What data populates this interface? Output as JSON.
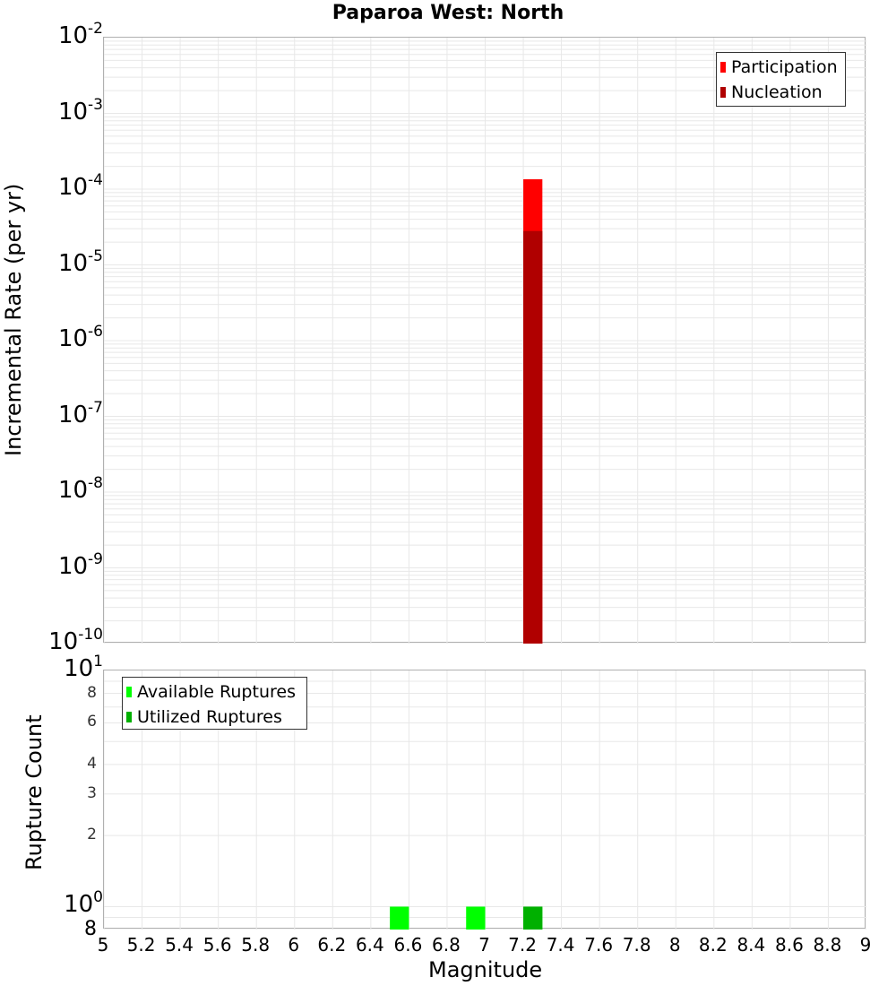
{
  "title": "Paparoa West: North",
  "colors": {
    "participation": "#ff0000",
    "nucleation": "#b00000",
    "available": "#00ff00",
    "utilized": "#00b000",
    "grid": "#e8e8e8",
    "axis": "#b0b0b0"
  },
  "top_plot": {
    "ylabel": "Incremental Rate (per yr)",
    "yticks": [
      {
        "base": "10",
        "exp": "-2"
      },
      {
        "base": "10",
        "exp": "-3"
      },
      {
        "base": "10",
        "exp": "-4"
      },
      {
        "base": "10",
        "exp": "-5"
      },
      {
        "base": "10",
        "exp": "-6"
      },
      {
        "base": "10",
        "exp": "-7"
      },
      {
        "base": "10",
        "exp": "-8"
      },
      {
        "base": "10",
        "exp": "-9"
      },
      {
        "base": "10",
        "exp": "-10"
      }
    ],
    "legend": [
      {
        "label": "Participation"
      },
      {
        "label": "Nucleation"
      }
    ]
  },
  "bottom_plot": {
    "ylabel": "Rupture Count",
    "yticks_major": [
      {
        "base": "10",
        "exp": "1"
      },
      {
        "base": "10",
        "exp": "0"
      }
    ],
    "yticks_minor": [
      "8",
      "6",
      "4",
      "3",
      "2"
    ],
    "ytick_bottom": "8",
    "legend": [
      {
        "label": "Available Ruptures"
      },
      {
        "label": "Utilized Ruptures"
      }
    ]
  },
  "xaxis": {
    "label": "Magnitude",
    "ticks": [
      "5",
      "5.2",
      "5.4",
      "5.6",
      "5.8",
      "6",
      "6.2",
      "6.4",
      "6.6",
      "6.8",
      "7",
      "7.2",
      "7.4",
      "7.6",
      "7.8",
      "8",
      "8.2",
      "8.4",
      "8.6",
      "8.8",
      "9"
    ]
  },
  "chart_data": [
    {
      "type": "bar",
      "title": "Paparoa West: North",
      "xlabel": "Magnitude",
      "ylabel": "Incremental Rate (per yr)",
      "yscale": "log",
      "xlim": [
        5,
        9
      ],
      "ylim": [
        1e-10,
        0.01
      ],
      "grid": true,
      "legend_position": "upper right",
      "bin_width": 0.1,
      "x": [
        7.25
      ],
      "series": [
        {
          "name": "Participation",
          "color": "#ff0000",
          "values": [
            0.000135
          ]
        },
        {
          "name": "Nucleation",
          "color": "#b00000",
          "values": [
            2.8e-05
          ]
        }
      ]
    },
    {
      "type": "bar",
      "title": "",
      "xlabel": "Magnitude",
      "ylabel": "Rupture Count",
      "yscale": "log",
      "xlim": [
        5,
        9
      ],
      "ylim": [
        0.8,
        10
      ],
      "grid": true,
      "legend_position": "upper left",
      "bin_width": 0.1,
      "x": [
        6.55,
        6.95,
        7.25
      ],
      "series": [
        {
          "name": "Available Ruptures",
          "color": "#00ff00",
          "values": [
            1,
            1,
            1
          ]
        },
        {
          "name": "Utilized Ruptures",
          "color": "#00b000",
          "values": [
            0,
            0,
            1
          ]
        }
      ]
    }
  ]
}
